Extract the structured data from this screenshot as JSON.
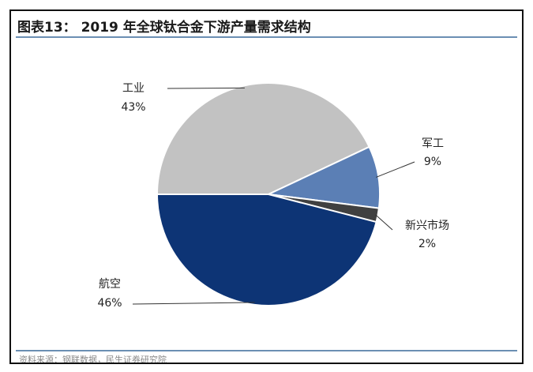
{
  "header": {
    "title": "图表13： 2019 年全球钛合金下游产量需求结构"
  },
  "footer": {
    "source": "资料来源：钢联数据，民生证券研究院"
  },
  "colors": {
    "border": "#111111",
    "rule": "#6b8fb3"
  },
  "chart_data": {
    "type": "pie",
    "title": "2019 年全球钛合金下游产量需求结构",
    "slices": [
      {
        "label": "工业",
        "value": 43,
        "value_label": "43%",
        "color": "#c2c2c2"
      },
      {
        "label": "军工",
        "value": 9,
        "value_label": "9%",
        "color": "#5b7fb5"
      },
      {
        "label": "新兴市场",
        "value": 2,
        "value_label": "2%",
        "color": "#404040"
      },
      {
        "label": "航空",
        "value": 46,
        "value_label": "46%",
        "color": "#0d3475"
      }
    ]
  }
}
